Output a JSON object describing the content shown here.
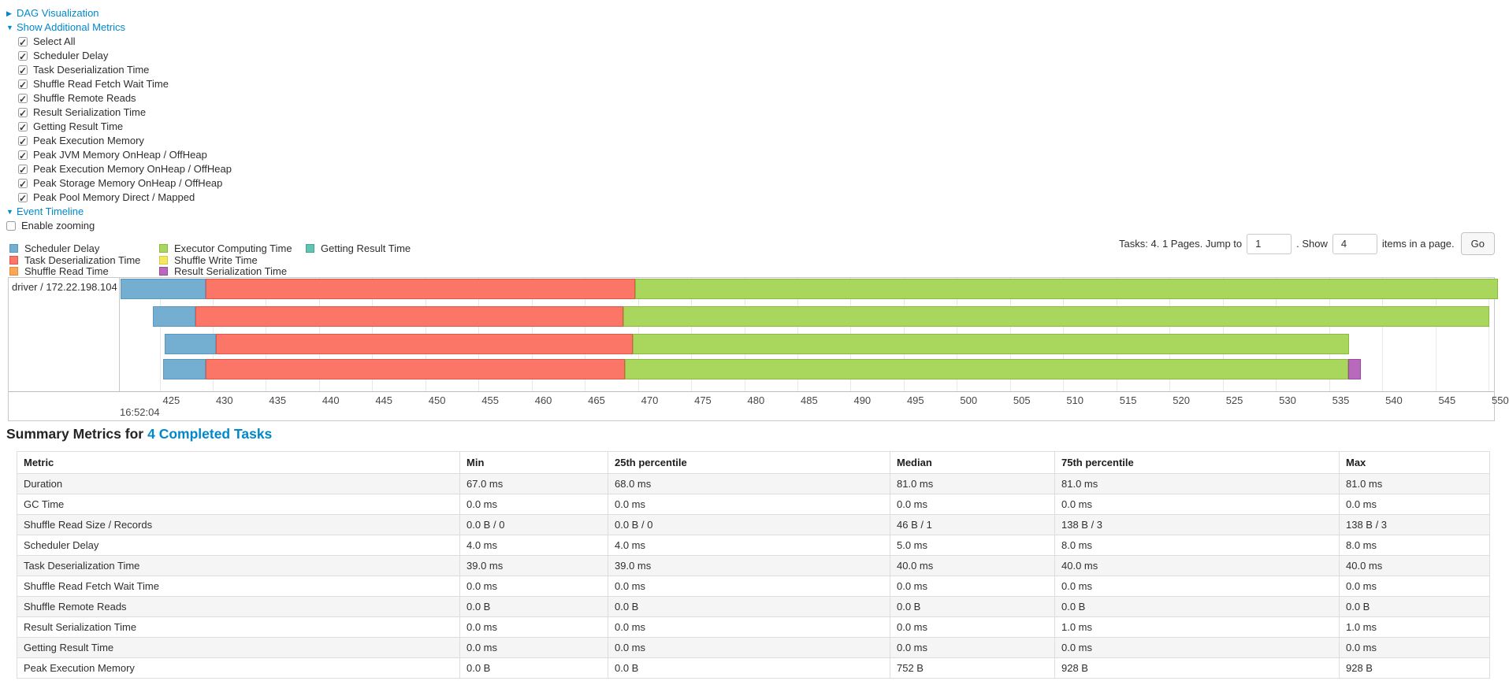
{
  "controls": {
    "dag_toggle": {
      "arrow": "▶",
      "label": "DAG Visualization"
    },
    "additional_metrics_toggle": {
      "arrow": "▼",
      "label": "Show Additional Metrics"
    },
    "metric_checkboxes": [
      {
        "label": "Select All",
        "checked": true
      },
      {
        "label": "Scheduler Delay",
        "checked": true
      },
      {
        "label": "Task Deserialization Time",
        "checked": true
      },
      {
        "label": "Shuffle Read Fetch Wait Time",
        "checked": true
      },
      {
        "label": "Shuffle Remote Reads",
        "checked": true
      },
      {
        "label": "Result Serialization Time",
        "checked": true
      },
      {
        "label": "Getting Result Time",
        "checked": true
      },
      {
        "label": "Peak Execution Memory",
        "checked": true
      },
      {
        "label": "Peak JVM Memory OnHeap / OffHeap",
        "checked": true
      },
      {
        "label": "Peak Execution Memory OnHeap / OffHeap",
        "checked": true
      },
      {
        "label": "Peak Storage Memory OnHeap / OffHeap",
        "checked": true
      },
      {
        "label": "Peak Pool Memory Direct / Mapped",
        "checked": true
      }
    ],
    "event_timeline_toggle": {
      "arrow": "▼",
      "label": "Event Timeline"
    },
    "enable_zooming": {
      "label": "Enable zooming",
      "checked": false
    }
  },
  "legend": {
    "columns": [
      [
        {
          "key": "scheduler",
          "label": "Scheduler Delay"
        },
        {
          "key": "deserialization",
          "label": "Task Deserialization Time"
        },
        {
          "key": "shuffle_read",
          "label": "Shuffle Read Time"
        }
      ],
      [
        {
          "key": "computing",
          "label": "Executor Computing Time"
        },
        {
          "key": "shuffle_write",
          "label": "Shuffle Write Time"
        },
        {
          "key": "result_serialization",
          "label": "Result Serialization Time"
        }
      ],
      [
        {
          "key": "getting_result",
          "label": "Getting Result Time"
        }
      ]
    ],
    "colors": {
      "scheduler": {
        "fill": "#74AFD2",
        "border": "#5A98BF"
      },
      "deserialization": {
        "fill": "#FB7667",
        "border": "#DE5748"
      },
      "shuffle_read": {
        "fill": "#FCA758",
        "border": "#E08C3C"
      },
      "computing": {
        "fill": "#A9D65D",
        "border": "#8CBA3C"
      },
      "shuffle_write": {
        "fill": "#F4E95E",
        "border": "#D6CA3F"
      },
      "result_serialization": {
        "fill": "#B869BC",
        "border": "#9A4BA0"
      },
      "getting_result": {
        "fill": "#62C3B2",
        "border": "#45A493"
      }
    }
  },
  "pagination": {
    "tasks_text": "Tasks: 4. 1 Pages. Jump to",
    "jump_value": "1",
    "show_text": ". Show",
    "show_value": "4",
    "items_text": "items in a page.",
    "go_label": "Go"
  },
  "timeline": {
    "group_label": "driver / 172.22.198.104",
    "axis_start_label": "16:52:04",
    "tick_start_ms": 425,
    "tick_step_ms": 5,
    "tick_labels": [
      "425",
      "430",
      "435",
      "440",
      "445",
      "450",
      "455",
      "460",
      "465",
      "470",
      "475",
      "480",
      "485",
      "490",
      "495",
      "500",
      "505",
      "510",
      "515",
      "520",
      "525",
      "530",
      "535",
      "540",
      "545",
      "550"
    ],
    "tasks": [
      {
        "segments": [
          {
            "key": "scheduler",
            "start": 421.3,
            "end": 429.3
          },
          {
            "key": "deserialization",
            "start": 429.3,
            "end": 469.7
          },
          {
            "key": "computing",
            "start": 469.7,
            "end": 550.9
          }
        ]
      },
      {
        "segments": [
          {
            "key": "scheduler",
            "start": 424.4,
            "end": 428.4
          },
          {
            "key": "deserialization",
            "start": 428.4,
            "end": 468.6
          },
          {
            "key": "computing",
            "start": 468.6,
            "end": 550.1
          }
        ]
      },
      {
        "segments": [
          {
            "key": "scheduler",
            "start": 425.5,
            "end": 430.3
          },
          {
            "key": "deserialization",
            "start": 430.3,
            "end": 469.5
          },
          {
            "key": "computing",
            "start": 469.5,
            "end": 536.9
          }
        ]
      },
      {
        "segments": [
          {
            "key": "scheduler",
            "start": 425.3,
            "end": 429.3
          },
          {
            "key": "deserialization",
            "start": 429.3,
            "end": 468.8
          },
          {
            "key": "computing",
            "start": 468.8,
            "end": 536.8
          },
          {
            "key": "result_serialization",
            "start": 536.8,
            "end": 538.0
          }
        ]
      }
    ]
  },
  "summary": {
    "title_prefix": "Summary Metrics for",
    "title_link": "4 Completed Tasks",
    "columns": [
      "Metric",
      "Min",
      "25th percentile",
      "Median",
      "75th percentile",
      "Max"
    ],
    "rows": [
      {
        "metric": "Duration",
        "values": [
          "67.0 ms",
          "68.0 ms",
          "81.0 ms",
          "81.0 ms",
          "81.0 ms"
        ]
      },
      {
        "metric": "GC Time",
        "values": [
          "0.0 ms",
          "0.0 ms",
          "0.0 ms",
          "0.0 ms",
          "0.0 ms"
        ]
      },
      {
        "metric": "Shuffle Read Size / Records",
        "values": [
          "0.0 B / 0",
          "0.0 B / 0",
          "46 B / 1",
          "138 B / 3",
          "138 B / 3"
        ]
      },
      {
        "metric": "Scheduler Delay",
        "values": [
          "4.0 ms",
          "4.0 ms",
          "5.0 ms",
          "8.0 ms",
          "8.0 ms"
        ]
      },
      {
        "metric": "Task Deserialization Time",
        "values": [
          "39.0 ms",
          "39.0 ms",
          "40.0 ms",
          "40.0 ms",
          "40.0 ms"
        ]
      },
      {
        "metric": "Shuffle Read Fetch Wait Time",
        "values": [
          "0.0 ms",
          "0.0 ms",
          "0.0 ms",
          "0.0 ms",
          "0.0 ms"
        ]
      },
      {
        "metric": "Shuffle Remote Reads",
        "values": [
          "0.0 B",
          "0.0 B",
          "0.0 B",
          "0.0 B",
          "0.0 B"
        ]
      },
      {
        "metric": "Result Serialization Time",
        "values": [
          "0.0 ms",
          "0.0 ms",
          "0.0 ms",
          "1.0 ms",
          "1.0 ms"
        ]
      },
      {
        "metric": "Getting Result Time",
        "values": [
          "0.0 ms",
          "0.0 ms",
          "0.0 ms",
          "0.0 ms",
          "0.0 ms"
        ]
      },
      {
        "metric": "Peak Execution Memory",
        "values": [
          "0.0 B",
          "0.0 B",
          "752 B",
          "928 B",
          "928 B"
        ]
      }
    ]
  }
}
